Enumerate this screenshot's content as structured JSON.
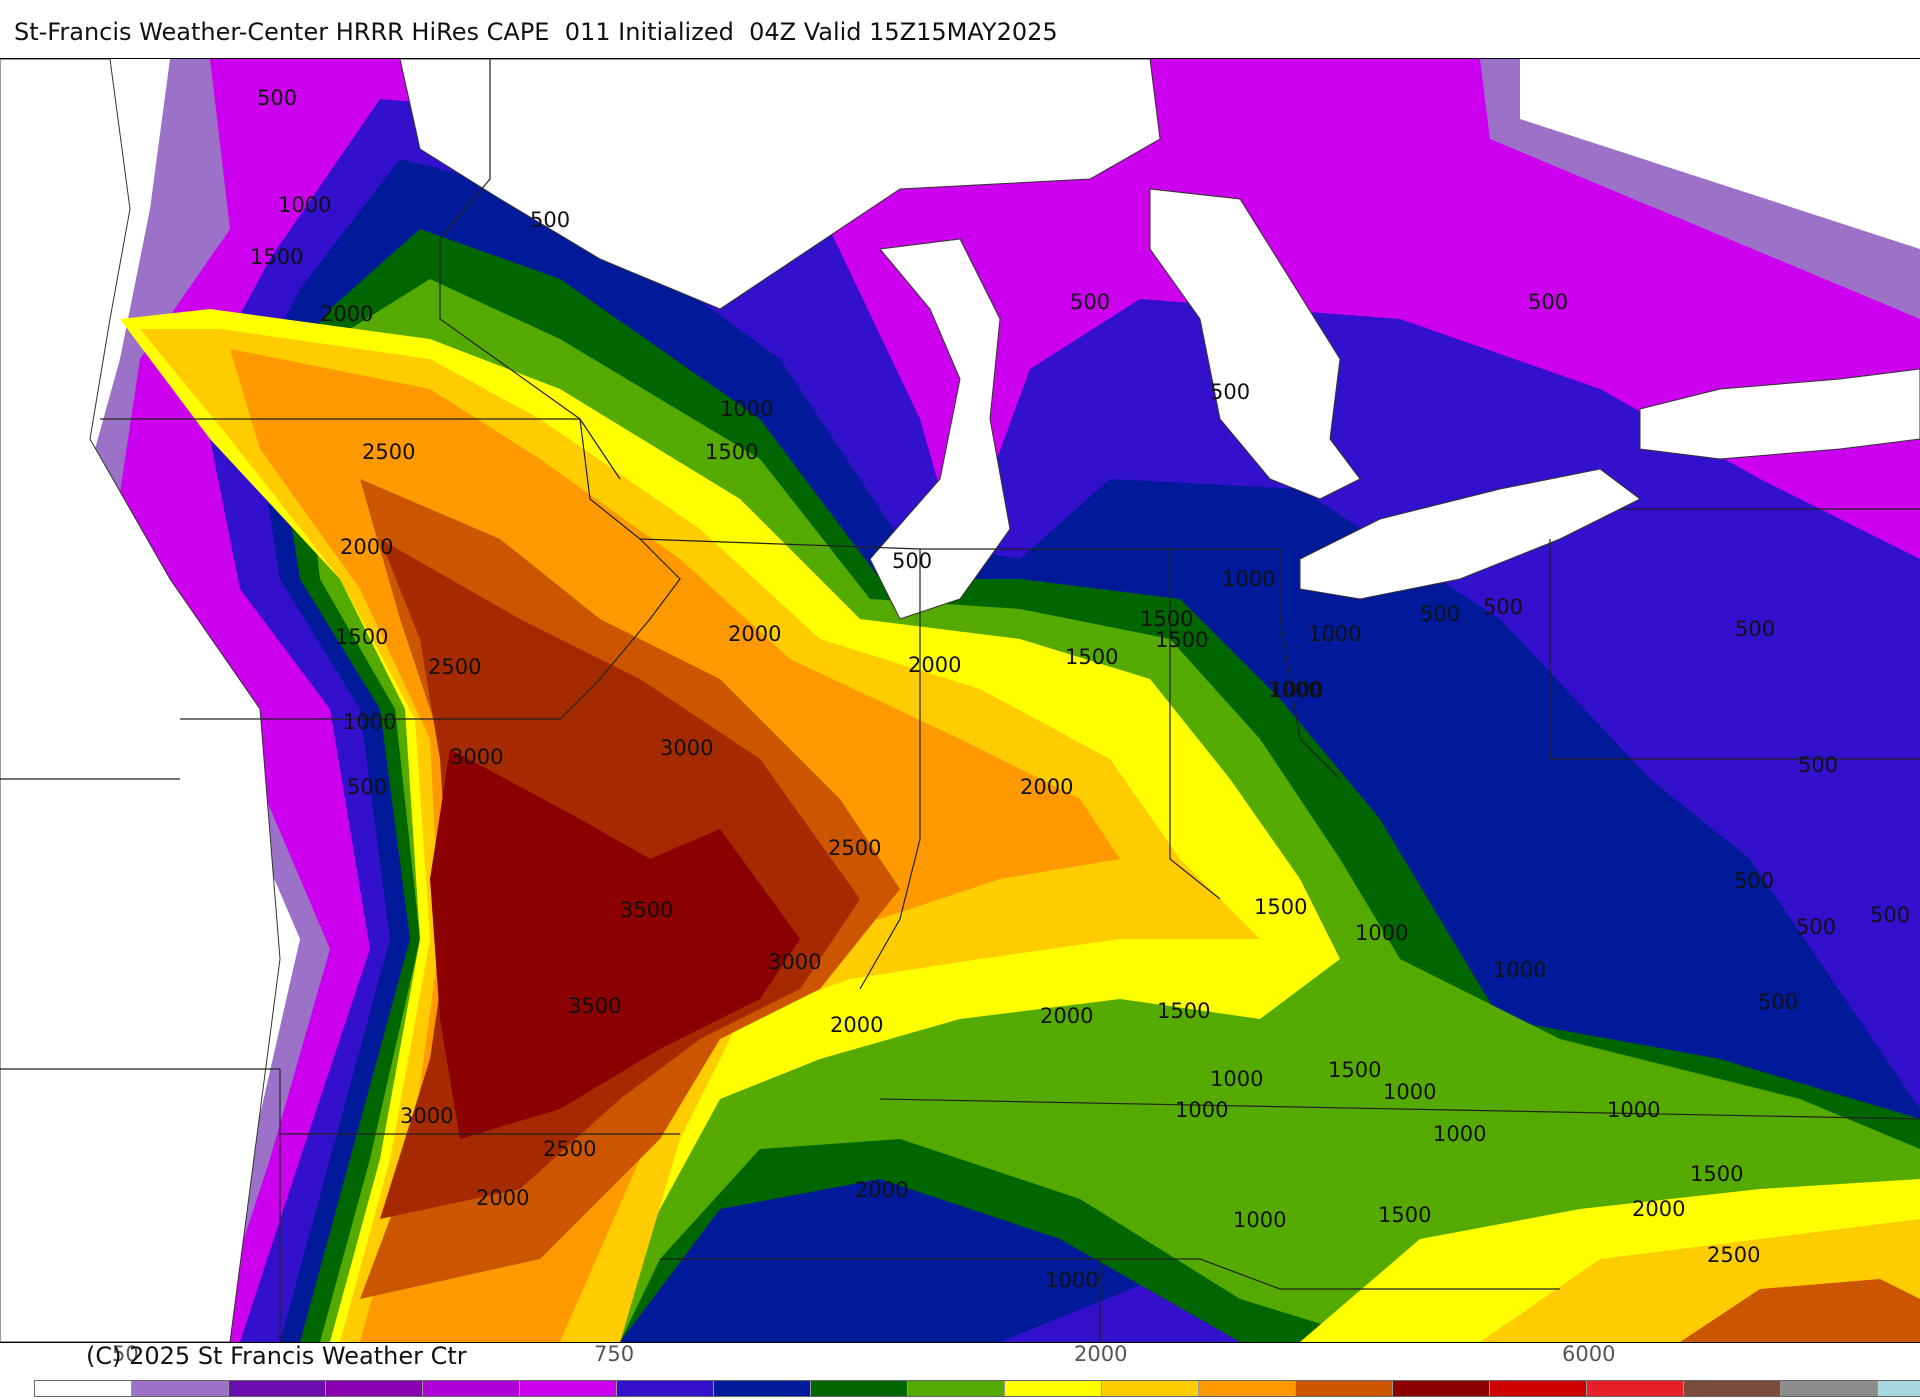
{
  "header": {
    "title": "St-Francis Weather-Center HRRR HiRes CAPE  011 Initialized  04Z Valid 15Z15MAY2025"
  },
  "map": {
    "variable": "CAPE",
    "colors": {
      "c250": "#9b72c8",
      "c500": "#cc00ee",
      "c750": "#3311cc",
      "c1000": "#001a99",
      "c1250": "#006600",
      "c1500": "#55aa00",
      "c1750": "#ffff00",
      "c2000": "#ffcc00",
      "c2250": "#ff9900",
      "c2500": "#cc5500",
      "c3000": "#a52a00",
      "c3500": "#8b0000"
    },
    "contour_labels": [
      "500",
      "1000",
      "1500",
      "2000",
      "2500",
      "2000",
      "1500",
      "2500",
      "1000",
      "500",
      "3000",
      "3000",
      "2500",
      "3500",
      "3500",
      "3000",
      "3000",
      "2500",
      "2000",
      "2000",
      "500",
      "1000",
      "1500",
      "500",
      "1000",
      "1500",
      "2000",
      "2000",
      "1500",
      "2000",
      "1000",
      "500",
      "500",
      "1000",
      "500",
      "500",
      "1500",
      "1000",
      "1000",
      "1500",
      "1500",
      "1000",
      "2000",
      "1000",
      "1000",
      "1500",
      "1000",
      "1000",
      "2000",
      "2500",
      "1500",
      "1000",
      "1000",
      "1500",
      "1000",
      "2000",
      "500",
      "500",
      "500",
      "500",
      "500",
      "500",
      "500"
    ]
  },
  "footer": {
    "copyright": "(C) 2025 St Francis Weather Ctr",
    "colorbar_colors": [
      "#ffffff",
      "#9b72c8",
      "#6a0dad",
      "#8a00b0",
      "#b000d8",
      "#cc00ee",
      "#3311cc",
      "#001a99",
      "#006600",
      "#55aa00",
      "#ffff00",
      "#ffcc00",
      "#ff9900",
      "#cc5500",
      "#8b0000",
      "#cc0000",
      "#e8202a",
      "#7a4a3a",
      "#8c8c8c",
      "#a6d8e0"
    ],
    "colorbar_ticks": [
      "50",
      "750",
      "2000",
      "6000"
    ]
  }
}
